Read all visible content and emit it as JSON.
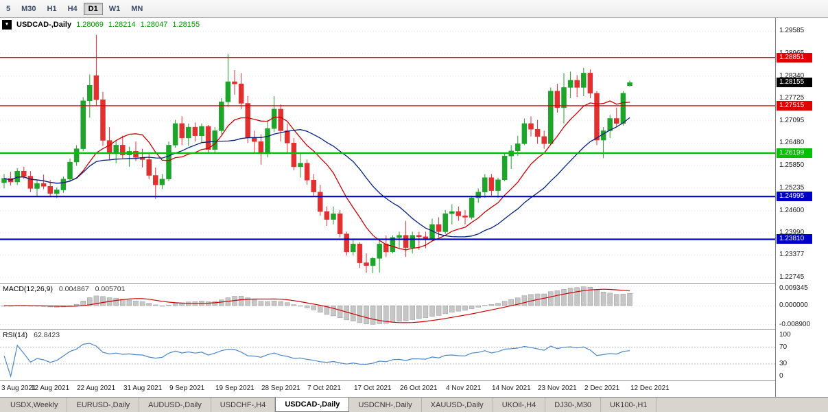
{
  "colors": {
    "candle_up": "#1ea32b",
    "candle_down": "#e03030",
    "ma_fast": "#cc0000",
    "ma_slow": "#002080",
    "macd_hist": "#c6c6c6",
    "macd_hist_border": "#9a9a9a",
    "macd_signal": "#cc0000",
    "rsi_line": "#4a86c8",
    "grid": "#e4e4e4",
    "resistance_red": "#e00000",
    "support_green": "#00c000",
    "support_blue": "#0000c8",
    "current_price_badge": "#000000"
  },
  "icons": {
    "chart_dropdown": "▼"
  },
  "toolbar": {
    "periods": [
      {
        "label": "5",
        "active": false
      },
      {
        "label": "M30",
        "active": false
      },
      {
        "label": "H1",
        "active": false
      },
      {
        "label": "H4",
        "active": false
      },
      {
        "label": "D1",
        "active": true
      },
      {
        "label": "W1",
        "active": false
      },
      {
        "label": "MN",
        "active": false
      }
    ]
  },
  "chart_data": {
    "type": "candlestick",
    "symbol": "USDCAD",
    "timeframe": "Daily",
    "info": {
      "symbol": "USDCAD-,Daily",
      "open": "1.28069",
      "high": "1.28214",
      "low": "1.28047",
      "close": "1.28155"
    },
    "ylim": [
      1.226,
      1.2995
    ],
    "price_axis_ticks": [
      "1.29585",
      "1.28965",
      "1.28340",
      "1.27725",
      "1.27095",
      "1.26480",
      "1.25850",
      "1.25235",
      "1.24600",
      "1.23990",
      "1.23377",
      "1.22745"
    ],
    "hlines": [
      {
        "label": "1.28851",
        "price": 1.28851,
        "color": "#e00000",
        "width": 1.4,
        "role": "resistance"
      },
      {
        "label": "1.27515",
        "price": 1.27515,
        "color": "#e00000",
        "width": 1.4,
        "role": "resistance"
      },
      {
        "label": "1.26199",
        "price": 1.26199,
        "color": "#00c000",
        "width": 2.6,
        "role": "support"
      },
      {
        "label": "1.24995",
        "price": 1.24995,
        "color": "#0000c8",
        "width": 2.2,
        "role": "support"
      },
      {
        "label": "1.23810",
        "price": 1.2381,
        "color": "#0000c8",
        "width": 2.2,
        "role": "support"
      }
    ],
    "current_price": {
      "label": "1.28155",
      "price": 1.28155,
      "badge_color": "#000000"
    },
    "x_axis": {
      "indices": [
        0,
        7,
        14,
        21,
        28,
        35,
        42,
        49,
        56,
        63,
        70,
        77,
        84,
        91,
        98
      ],
      "labels": [
        "3 Aug 2021",
        "12 Aug 2021",
        "22 Aug 2021",
        "31 Aug 2021",
        "9 Sep 2021",
        "19 Sep 2021",
        "28 Sep 2021",
        "7 Oct 2021",
        "17 Oct 2021",
        "26 Oct 2021",
        "4 Nov 2021",
        "14 Nov 2021",
        "23 Nov 2021",
        "2 Dec 2021",
        "12 Dec 2021"
      ]
    },
    "moving_averages": [
      {
        "name": "ma-fast",
        "period": 10,
        "color": "#cc0000"
      },
      {
        "name": "ma-slow",
        "period": 21,
        "color": "#002080"
      }
    ],
    "ohlc": [
      [
        1.2538,
        1.2562,
        1.2522,
        1.255
      ],
      [
        1.255,
        1.2568,
        1.253,
        1.254
      ],
      [
        1.254,
        1.2578,
        1.2532,
        1.257
      ],
      [
        1.257,
        1.2582,
        1.2548,
        1.2556
      ],
      [
        1.2556,
        1.257,
        1.2512,
        1.2522
      ],
      [
        1.2522,
        1.2545,
        1.25,
        1.2536
      ],
      [
        1.2536,
        1.256,
        1.252,
        1.2528
      ],
      [
        1.2528,
        1.2545,
        1.2498,
        1.2508
      ],
      [
        1.2508,
        1.2525,
        1.2495,
        1.2518
      ],
      [
        1.2518,
        1.2555,
        1.251,
        1.2548
      ],
      [
        1.2548,
        1.2605,
        1.254,
        1.2595
      ],
      [
        1.2595,
        1.2642,
        1.2585,
        1.2632
      ],
      [
        1.2632,
        1.2775,
        1.2625,
        1.2765
      ],
      [
        1.2765,
        1.2838,
        1.2718,
        1.2808
      ],
      [
        1.2835,
        1.2948,
        1.2752,
        1.2768
      ],
      [
        1.2768,
        1.279,
        1.264,
        1.2655
      ],
      [
        1.2655,
        1.2692,
        1.2602,
        1.2618
      ],
      [
        1.2618,
        1.2655,
        1.2592,
        1.2642
      ],
      [
        1.2642,
        1.2668,
        1.2605,
        1.2615
      ],
      [
        1.2615,
        1.2638,
        1.2582,
        1.2625
      ],
      [
        1.2625,
        1.2652,
        1.2598,
        1.2608
      ],
      [
        1.2608,
        1.2632,
        1.258,
        1.2602
      ],
      [
        1.2602,
        1.2618,
        1.2548,
        1.2558
      ],
      [
        1.2558,
        1.258,
        1.2493,
        1.2532
      ],
      [
        1.2532,
        1.2562,
        1.252,
        1.2548
      ],
      [
        1.2548,
        1.2652,
        1.2542,
        1.2642
      ],
      [
        1.2642,
        1.2712,
        1.2635,
        1.2702
      ],
      [
        1.2702,
        1.2722,
        1.2642,
        1.2662
      ],
      [
        1.2662,
        1.2702,
        1.264,
        1.2692
      ],
      [
        1.2692,
        1.2705,
        1.2652,
        1.2668
      ],
      [
        1.2668,
        1.2702,
        1.2648,
        1.2694
      ],
      [
        1.2694,
        1.2698,
        1.2618,
        1.263
      ],
      [
        1.263,
        1.2692,
        1.2622,
        1.2682
      ],
      [
        1.2682,
        1.2772,
        1.2672,
        1.2762
      ],
      [
        1.2762,
        1.2895,
        1.2748,
        1.2818
      ],
      [
        1.2818,
        1.285,
        1.2782,
        1.2812
      ],
      [
        1.2812,
        1.2842,
        1.2742,
        1.2758
      ],
      [
        1.2758,
        1.2778,
        1.2648,
        1.2662
      ],
      [
        1.2662,
        1.2682,
        1.2618,
        1.2652
      ],
      [
        1.2652,
        1.2672,
        1.2588,
        1.2618
      ],
      [
        1.2618,
        1.2712,
        1.2608,
        1.2688
      ],
      [
        1.2688,
        1.2778,
        1.2678,
        1.2742
      ],
      [
        1.2742,
        1.2755,
        1.2652,
        1.2682
      ],
      [
        1.2682,
        1.2702,
        1.2622,
        1.2648
      ],
      [
        1.2648,
        1.2662,
        1.2572,
        1.2582
      ],
      [
        1.2582,
        1.2622,
        1.2552,
        1.2592
      ],
      [
        1.2592,
        1.2602,
        1.2532,
        1.2545
      ],
      [
        1.2545,
        1.2562,
        1.2502,
        1.2512
      ],
      [
        1.2512,
        1.2532,
        1.2446,
        1.2458
      ],
      [
        1.2458,
        1.2472,
        1.2418,
        1.2436
      ],
      [
        1.2436,
        1.2472,
        1.2422,
        1.2452
      ],
      [
        1.2452,
        1.2462,
        1.2386,
        1.2396
      ],
      [
        1.2396,
        1.2402,
        1.2336,
        1.2346
      ],
      [
        1.2346,
        1.2382,
        1.2336,
        1.2368
      ],
      [
        1.2368,
        1.2372,
        1.2302,
        1.2316
      ],
      [
        1.2316,
        1.2342,
        1.2288,
        1.2308
      ],
      [
        1.2308,
        1.2332,
        1.2287,
        1.2328
      ],
      [
        1.2328,
        1.2378,
        1.2289,
        1.2368
      ],
      [
        1.2368,
        1.2392,
        1.2332,
        1.2346
      ],
      [
        1.2346,
        1.2392,
        1.2342,
        1.2386
      ],
      [
        1.2386,
        1.2402,
        1.2356,
        1.2392
      ],
      [
        1.2392,
        1.2432,
        1.2332,
        1.2358
      ],
      [
        1.2358,
        1.2402,
        1.2342,
        1.2392
      ],
      [
        1.2392,
        1.2402,
        1.2352,
        1.2388
      ],
      [
        1.2388,
        1.2402,
        1.2356,
        1.2382
      ],
      [
        1.2382,
        1.2438,
        1.2376,
        1.2422
      ],
      [
        1.2422,
        1.2442,
        1.2386,
        1.2402
      ],
      [
        1.2402,
        1.2462,
        1.2396,
        1.2452
      ],
      [
        1.2452,
        1.2478,
        1.2422,
        1.2458
      ],
      [
        1.2458,
        1.2472,
        1.2432,
        1.2446
      ],
      [
        1.2446,
        1.2462,
        1.2422,
        1.2442
      ],
      [
        1.2442,
        1.2502,
        1.2436,
        1.2496
      ],
      [
        1.2496,
        1.2522,
        1.2482,
        1.2512
      ],
      [
        1.2512,
        1.2562,
        1.2496,
        1.2552
      ],
      [
        1.2552,
        1.2562,
        1.2502,
        1.2516
      ],
      [
        1.2516,
        1.2552,
        1.2496,
        1.2546
      ],
      [
        1.2546,
        1.2622,
        1.2542,
        1.2612
      ],
      [
        1.2612,
        1.2642,
        1.2576,
        1.2626
      ],
      [
        1.2626,
        1.2668,
        1.2612,
        1.2646
      ],
      [
        1.2646,
        1.2716,
        1.2642,
        1.2702
      ],
      [
        1.2702,
        1.2722,
        1.2666,
        1.2686
      ],
      [
        1.2686,
        1.2712,
        1.2646,
        1.2666
      ],
      [
        1.2666,
        1.2682,
        1.2632,
        1.2646
      ],
      [
        1.2646,
        1.2802,
        1.2642,
        1.2792
      ],
      [
        1.2792,
        1.2812,
        1.2732,
        1.2746
      ],
      [
        1.2746,
        1.2842,
        1.2702,
        1.2802
      ],
      [
        1.2802,
        1.2846,
        1.2772,
        1.2822
      ],
      [
        1.2822,
        1.2836,
        1.2776,
        1.2802
      ],
      [
        1.2802,
        1.2856,
        1.2778,
        1.2842
      ],
      [
        1.2842,
        1.2852,
        1.2772,
        1.2786
      ],
      [
        1.2786,
        1.2792,
        1.2642,
        1.2656
      ],
      [
        1.2656,
        1.2692,
        1.2606,
        1.2682
      ],
      [
        1.2682,
        1.2726,
        1.2662,
        1.2716
      ],
      [
        1.2716,
        1.2746,
        1.2692,
        1.2702
      ],
      [
        1.2702,
        1.2792,
        1.2696,
        1.2786
      ],
      [
        1.28069,
        1.28214,
        1.28047,
        1.28155
      ]
    ],
    "macd": {
      "title": "MACD(12,26,9)",
      "values": [
        "0.004867",
        "0.005701"
      ],
      "params": [
        12,
        26,
        9
      ],
      "axis": [
        "0.009345",
        "0.000000",
        "-0.008900"
      ],
      "range": [
        -0.011,
        0.0105
      ]
    },
    "rsi": {
      "title": "RSI(14)",
      "value": "62.8423",
      "period": 14,
      "axis": [
        "100",
        "70",
        "30",
        "0"
      ],
      "levels": [
        70,
        30
      ]
    }
  },
  "tabs": [
    {
      "label": "USDX,Weekly",
      "active": false
    },
    {
      "label": "EURUSD-,Daily",
      "active": false
    },
    {
      "label": "AUDUSD-,Daily",
      "active": false
    },
    {
      "label": "USDCHF-,H4",
      "active": false
    },
    {
      "label": "USDCAD-,Daily",
      "active": true
    },
    {
      "label": "USDCNH-,Daily",
      "active": false
    },
    {
      "label": "XAUUSD-,Daily",
      "active": false
    },
    {
      "label": "UKOil-,H4",
      "active": false
    },
    {
      "label": "DJ30-,M30",
      "active": false
    },
    {
      "label": "UK100-,H1",
      "active": false
    }
  ]
}
